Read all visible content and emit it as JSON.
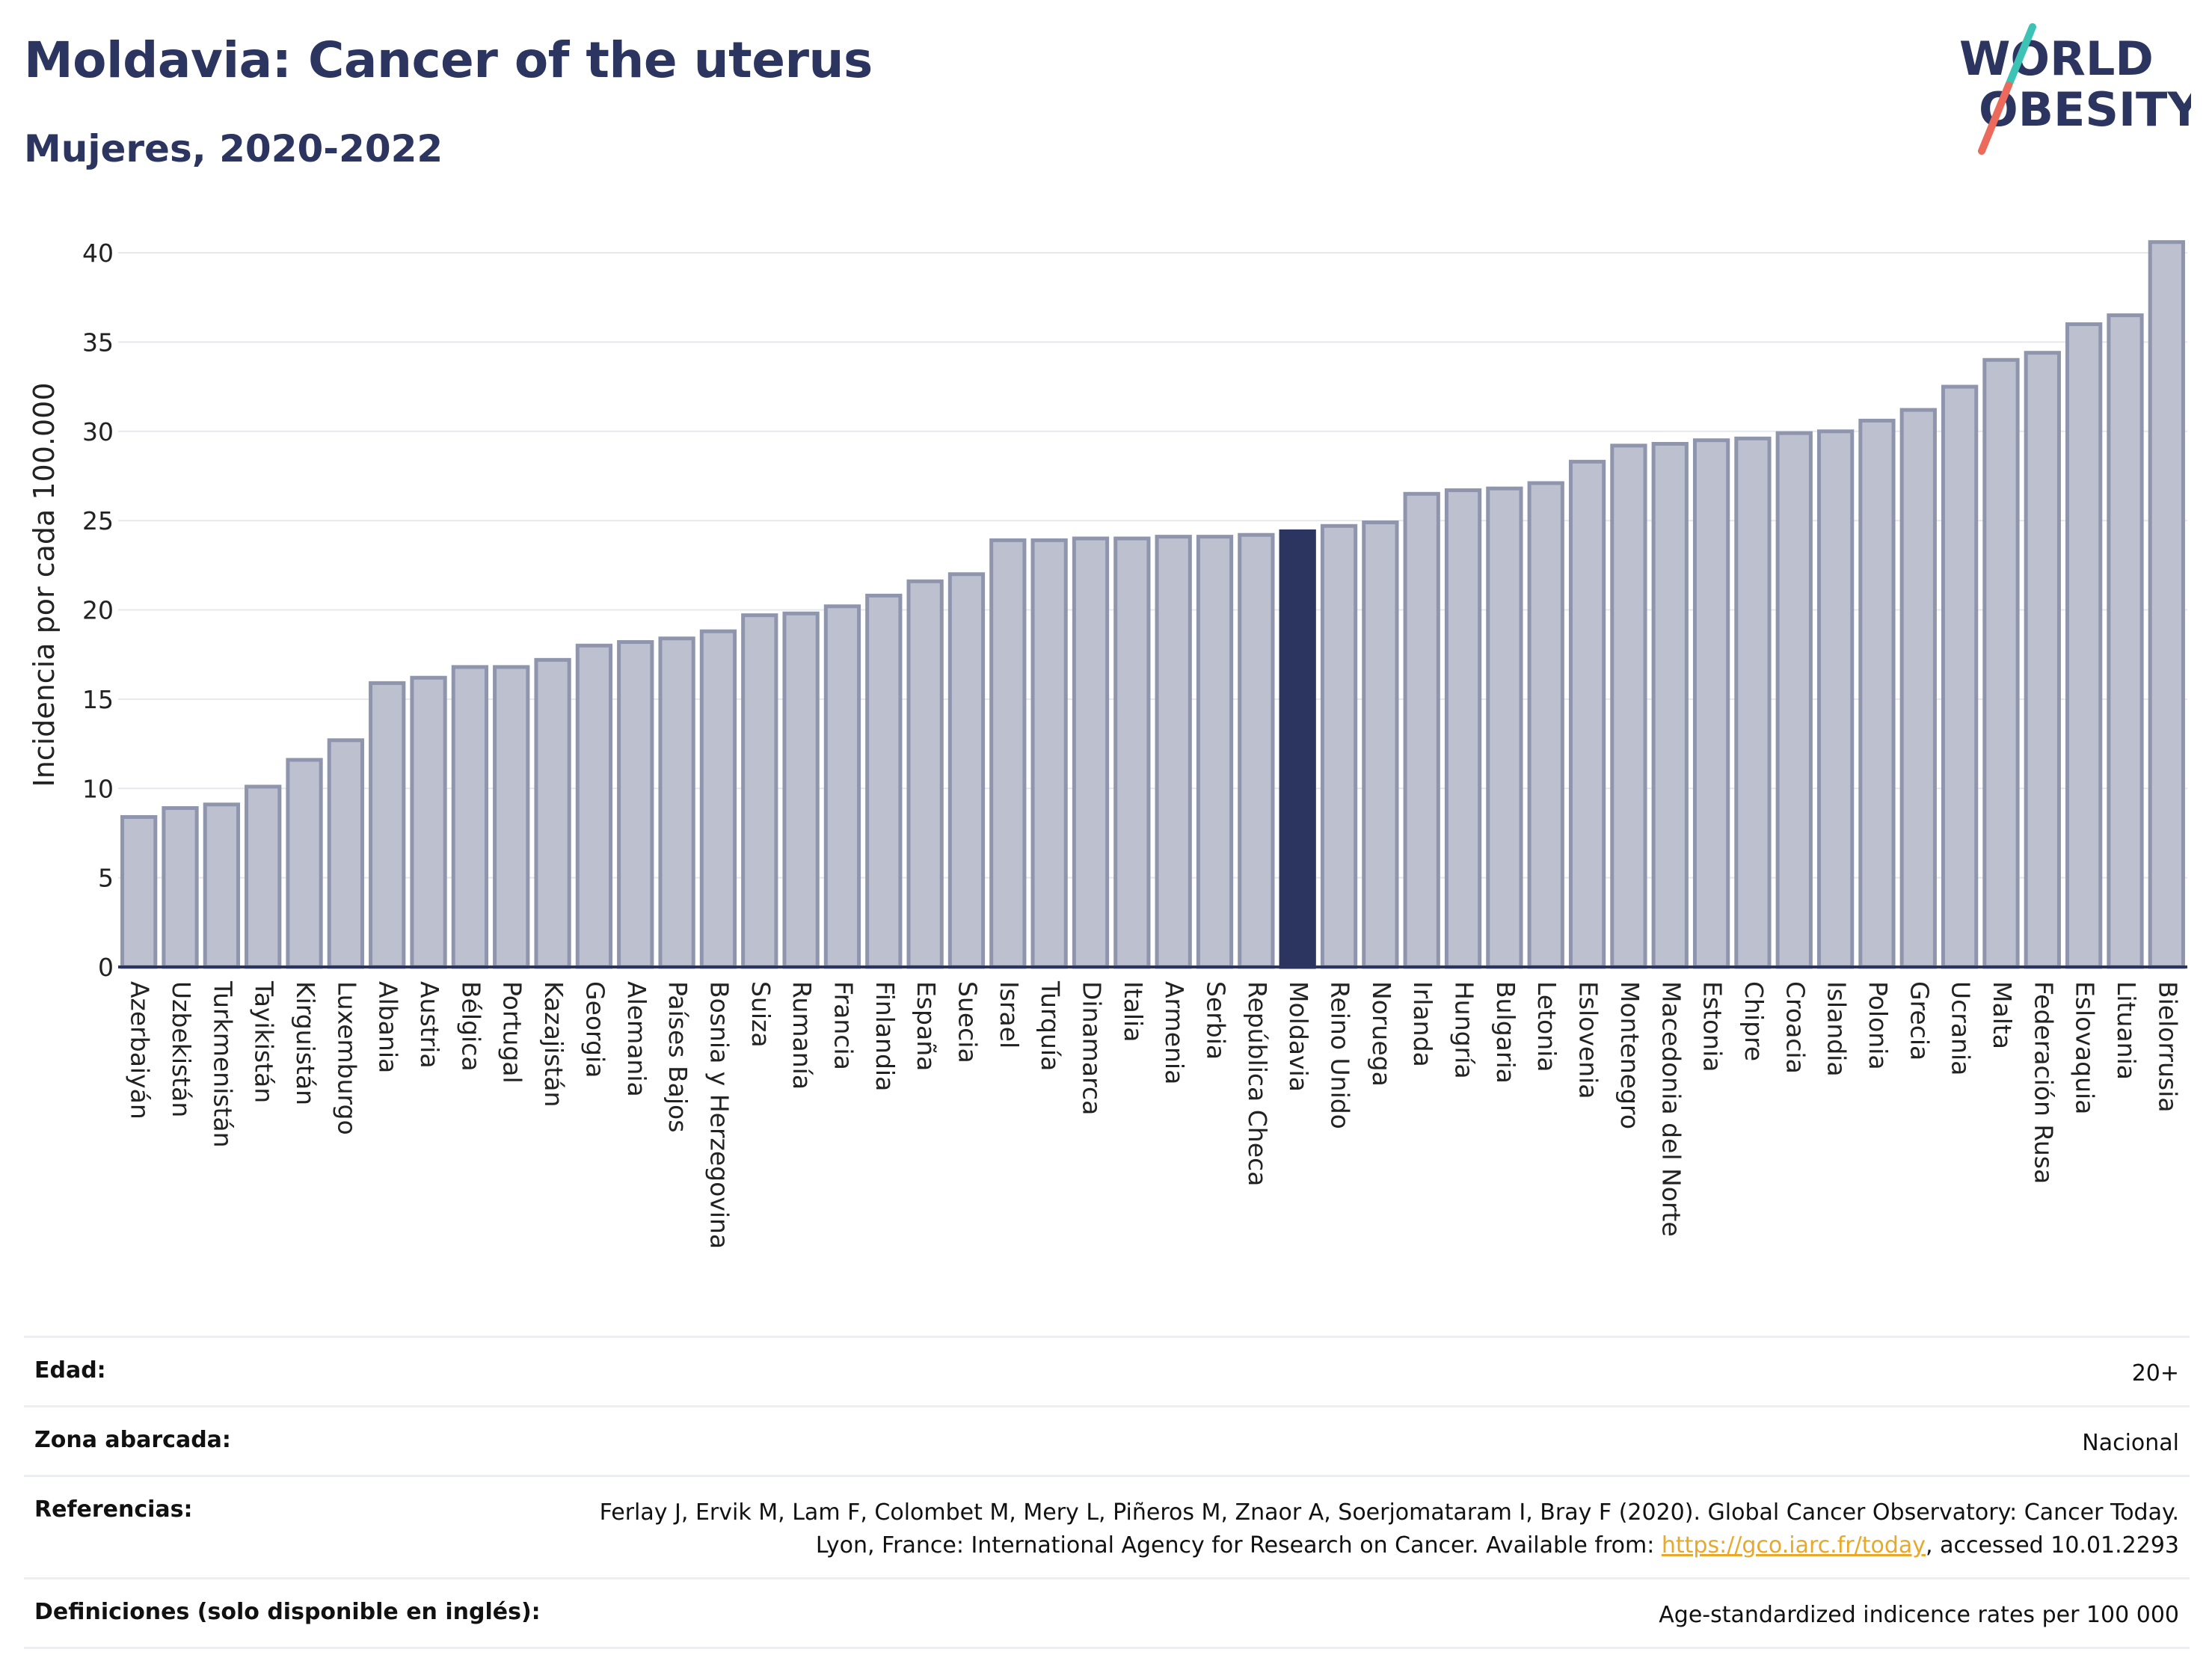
{
  "header": {
    "title": "Moldavia: Cancer of the uterus",
    "subtitle": "Mujeres, 2020-2022"
  },
  "logo": {
    "line1": "WORLD",
    "line2": "OBESITY",
    "colors": {
      "text": "#2b3560",
      "slash_top": "#3cc3b5",
      "slash_bottom": "#ec6a5c"
    }
  },
  "colors": {
    "bar": "#bcc0cf",
    "bar_border": "#8f95ad",
    "highlight": "#2b3560",
    "grid": "#e6e8ee",
    "axis": "#2b3560"
  },
  "chart_data": {
    "type": "bar",
    "ylabel": "Incidencia por cada 100.000",
    "ylim": [
      0,
      42
    ],
    "yticks": [
      0,
      5,
      10,
      15,
      20,
      25,
      30,
      35,
      40
    ],
    "grid": true,
    "highlight": "Moldavia",
    "categories": [
      "Azerbaiyán",
      "Uzbekistán",
      "Turkmenistán",
      "Tayikistán",
      "Kirguistán",
      "Luxemburgo",
      "Albania",
      "Austria",
      "Bélgica",
      "Portugal",
      "Kazajistán",
      "Georgia",
      "Alemania",
      "Países Bajos",
      "Bosnia y Herzegovina",
      "Suiza",
      "Rumanía",
      "Francia",
      "Finlandia",
      "España",
      "Suecia",
      "Israel",
      "Turquía",
      "Dinamarca",
      "Italia",
      "Armenia",
      "Serbia",
      "República Checa",
      "Moldavia",
      "Reino Unido",
      "Noruega",
      "Irlanda",
      "Hungría",
      "Bulgaria",
      "Letonia",
      "Eslovenia",
      "Montenegro",
      "Macedonia del Norte",
      "Estonia",
      "Chipre",
      "Croacia",
      "Islandia",
      "Polonia",
      "Grecia",
      "Ucrania",
      "Malta",
      "Federación Rusa",
      "Eslovaquia",
      "Lituania",
      "Bielorrusia"
    ],
    "values": [
      8.4,
      8.9,
      9.1,
      10.1,
      11.6,
      12.7,
      15.9,
      16.2,
      16.8,
      16.8,
      17.2,
      18.0,
      18.2,
      18.4,
      18.8,
      19.7,
      19.8,
      20.2,
      20.8,
      21.6,
      22.0,
      23.9,
      23.9,
      24.0,
      24.0,
      24.1,
      24.1,
      24.2,
      24.4,
      24.7,
      24.9,
      26.5,
      26.7,
      26.8,
      27.1,
      28.3,
      29.2,
      29.3,
      29.5,
      29.6,
      29.9,
      30.0,
      30.6,
      31.2,
      32.5,
      34.0,
      34.4,
      36.0,
      36.5,
      40.6
    ]
  },
  "info": {
    "rows": [
      {
        "label": "Edad:",
        "value": "20+"
      },
      {
        "label": "Zona abarcada:",
        "value": "Nacional"
      },
      {
        "label": "Referencias:",
        "value_pre": "Ferlay J, Ervik M, Lam F, Colombet M, Mery L, Piñeros M, Znaor A, Soerjomataram I, Bray F (2020). Global Cancer Observatory: Cancer Today. Lyon, France: International Agency for Research on Cancer. Available from: ",
        "link": "https://gco.iarc.fr/today",
        "value_post": ", accessed 10.01.2293"
      },
      {
        "label": "Definiciones (solo disponible en inglés):",
        "value": "Age-standardized indicence rates per 100 000"
      }
    ]
  }
}
